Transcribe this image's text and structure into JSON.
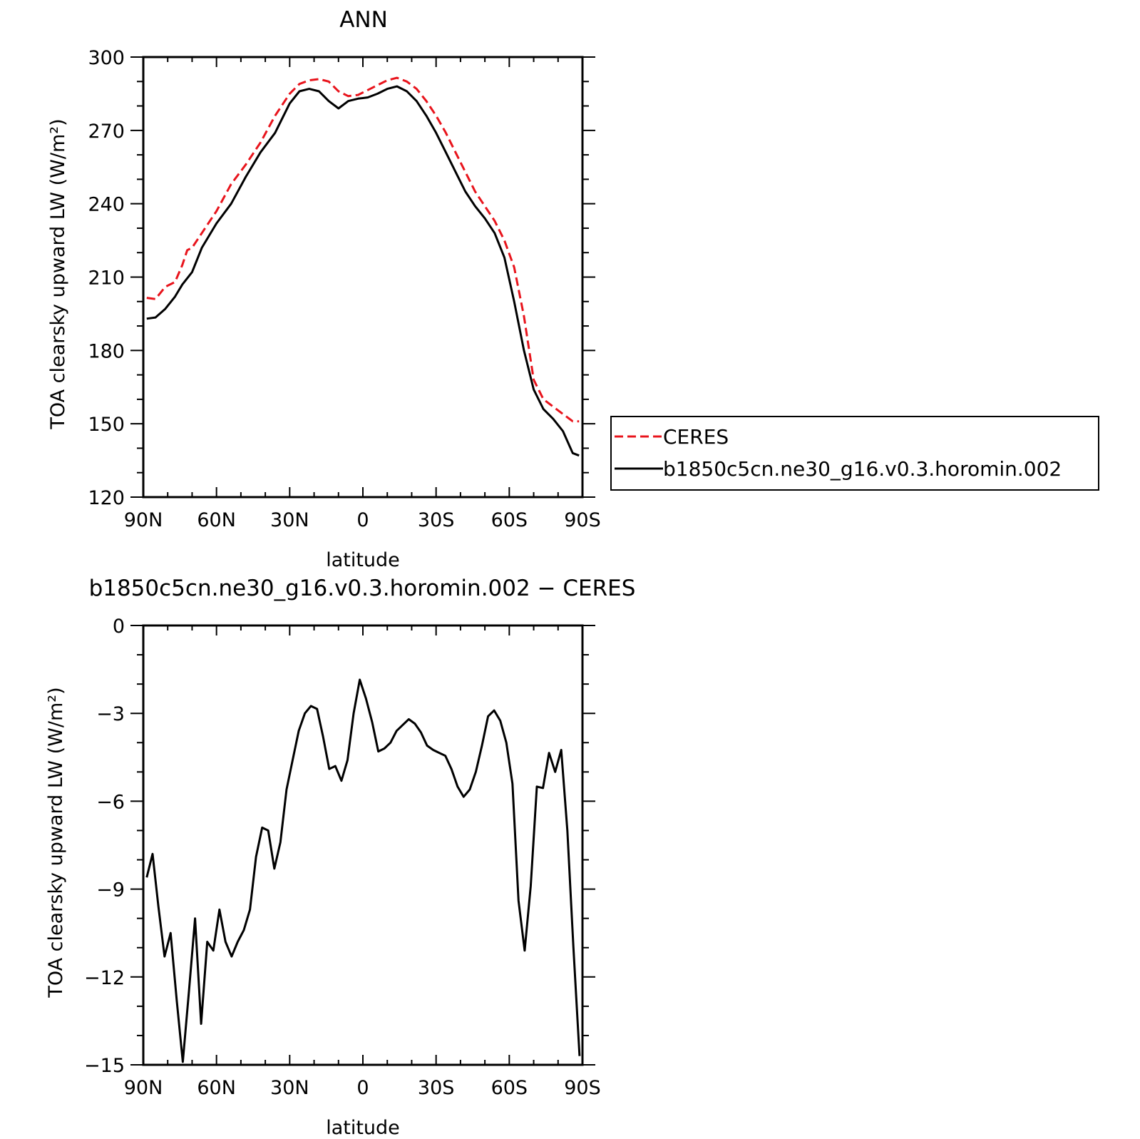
{
  "chart_data": [
    {
      "type": "line",
      "title": "ANN",
      "xlabel": "latitude",
      "ylabel": "TOA clearsky upward LW (W/m²)",
      "xlim": [
        90,
        -90
      ],
      "ylim": [
        120,
        300
      ],
      "x_ticks": [
        90,
        60,
        30,
        0,
        -30,
        -60,
        -90
      ],
      "x_tick_labels": [
        "90N",
        "60N",
        "30N",
        "0",
        "30S",
        "60S",
        "90S"
      ],
      "y_ticks": [
        120,
        150,
        180,
        210,
        240,
        270,
        300
      ],
      "y_tick_labels": [
        "120",
        "150",
        "180",
        "210",
        "240",
        "270",
        "300"
      ],
      "grid": false,
      "legend": "right",
      "series": [
        {
          "name": "CERES",
          "color": "#e8141c",
          "dash": true,
          "x": [
            88.6,
            85,
            81,
            77,
            74,
            72,
            70,
            66,
            60,
            54,
            48,
            42,
            36,
            30,
            26,
            22,
            18,
            14,
            10,
            6,
            2,
            -2,
            -6,
            -10,
            -14,
            -18,
            -22,
            -26,
            -30,
            -34,
            -38,
            -42,
            -46,
            -50,
            -54,
            -58,
            -62,
            -66,
            -70,
            -74,
            -78,
            -82,
            -86,
            -88.6
          ],
          "values": [
            201.5,
            201,
            206,
            208,
            215,
            221,
            222,
            228,
            237,
            248,
            256,
            265,
            276,
            285,
            289,
            290.5,
            291,
            290,
            286,
            284,
            284.5,
            286.5,
            288.5,
            290.5,
            291.5,
            290,
            287,
            282,
            276,
            269,
            261,
            253,
            245,
            239,
            233,
            225,
            214,
            194,
            168,
            160,
            157,
            154,
            151,
            151
          ]
        },
        {
          "name": "b1850c5cn.ne30_g16.v0.3.horomin.002",
          "color": "#000000",
          "dash": false,
          "x": [
            88.6,
            85,
            81,
            77,
            74,
            70,
            66,
            60,
            54,
            48,
            42,
            36,
            30,
            26,
            22,
            18,
            14,
            10,
            6,
            2,
            -2,
            -6,
            -10,
            -14,
            -18,
            -22,
            -26,
            -30,
            -34,
            -38,
            -42,
            -46,
            -50,
            -54,
            -58,
            -62,
            -66,
            -70,
            -74,
            -78,
            -82,
            -86,
            -88.6
          ],
          "values": [
            193,
            193.5,
            197,
            202,
            207,
            212,
            222,
            232,
            240,
            251,
            261,
            269,
            281,
            286,
            287,
            286,
            282,
            279,
            282,
            283,
            283.5,
            285,
            287,
            288,
            286,
            282,
            276,
            269,
            261,
            253,
            245,
            239,
            234,
            228,
            218,
            200,
            180,
            164,
            156,
            152,
            147,
            138,
            137
          ]
        }
      ]
    },
    {
      "type": "line",
      "title": "b1850c5cn.ne30_g16.v0.3.horomin.002 − CERES",
      "xlabel": "latitude",
      "ylabel": "TOA clearsky upward LW (W/m²)",
      "xlim": [
        90,
        -90
      ],
      "ylim": [
        -15,
        0
      ],
      "x_ticks": [
        90,
        60,
        30,
        0,
        -30,
        -60,
        -90
      ],
      "x_tick_labels": [
        "90N",
        "60N",
        "30N",
        "0",
        "30S",
        "60S",
        "90S"
      ],
      "y_ticks": [
        -15,
        -12,
        -9,
        -6,
        -3,
        0
      ],
      "y_tick_labels": [
        "−15",
        "−12",
        "−9",
        "−6",
        "−3",
        "0"
      ],
      "grid": false,
      "series": [
        {
          "color": "#000000",
          "dash": false,
          "x": [
            88.6,
            86.2,
            83.8,
            81.3,
            78.8,
            76.3,
            73.8,
            71.3,
            68.8,
            66.3,
            63.8,
            61.3,
            58.8,
            56.3,
            53.8,
            51.3,
            48.8,
            46.3,
            43.8,
            41.3,
            38.8,
            36.3,
            33.8,
            31.3,
            28.8,
            26.3,
            23.8,
            21.3,
            18.8,
            16.3,
            13.8,
            11.3,
            8.8,
            6.3,
            3.8,
            1.3,
            -1.3,
            -3.8,
            -6.3,
            -8.8,
            -11.3,
            -13.8,
            -16.3,
            -18.8,
            -21.3,
            -23.8,
            -26.3,
            -28.8,
            -31.3,
            -33.8,
            -36.3,
            -38.8,
            -41.3,
            -43.8,
            -46.3,
            -48.8,
            -51.3,
            -53.8,
            -56.3,
            -58.8,
            -61.3,
            -63.8,
            -66.3,
            -68.8,
            -71.3,
            -73.8,
            -76.3,
            -78.8,
            -81.3,
            -83.8,
            -86.3,
            -88.8
          ],
          "values": [
            -8.6,
            -7.8,
            -9.6,
            -11.3,
            -10.5,
            -12.8,
            -14.9,
            -12.5,
            -10.0,
            -13.6,
            -10.8,
            -11.1,
            -9.7,
            -10.8,
            -11.3,
            -10.8,
            -10.4,
            -9.7,
            -7.9,
            -6.9,
            -7.0,
            -8.3,
            -7.4,
            -5.6,
            -4.6,
            -3.6,
            -3.0,
            -2.75,
            -2.85,
            -3.8,
            -4.9,
            -4.8,
            -5.3,
            -4.6,
            -3.0,
            -1.85,
            -2.5,
            -3.3,
            -4.3,
            -4.2,
            -4.0,
            -3.6,
            -3.4,
            -3.2,
            -3.35,
            -3.65,
            -4.1,
            -4.25,
            -4.35,
            -4.45,
            -4.9,
            -5.5,
            -5.85,
            -5.6,
            -5.0,
            -4.1,
            -3.1,
            -2.9,
            -3.25,
            -4.0,
            -5.4,
            -9.4,
            -11.1,
            -8.9,
            -5.5,
            -5.55,
            -4.35,
            -5.0,
            -4.25,
            -7.0,
            -11.0,
            -14.7
          ]
        }
      ]
    }
  ]
}
